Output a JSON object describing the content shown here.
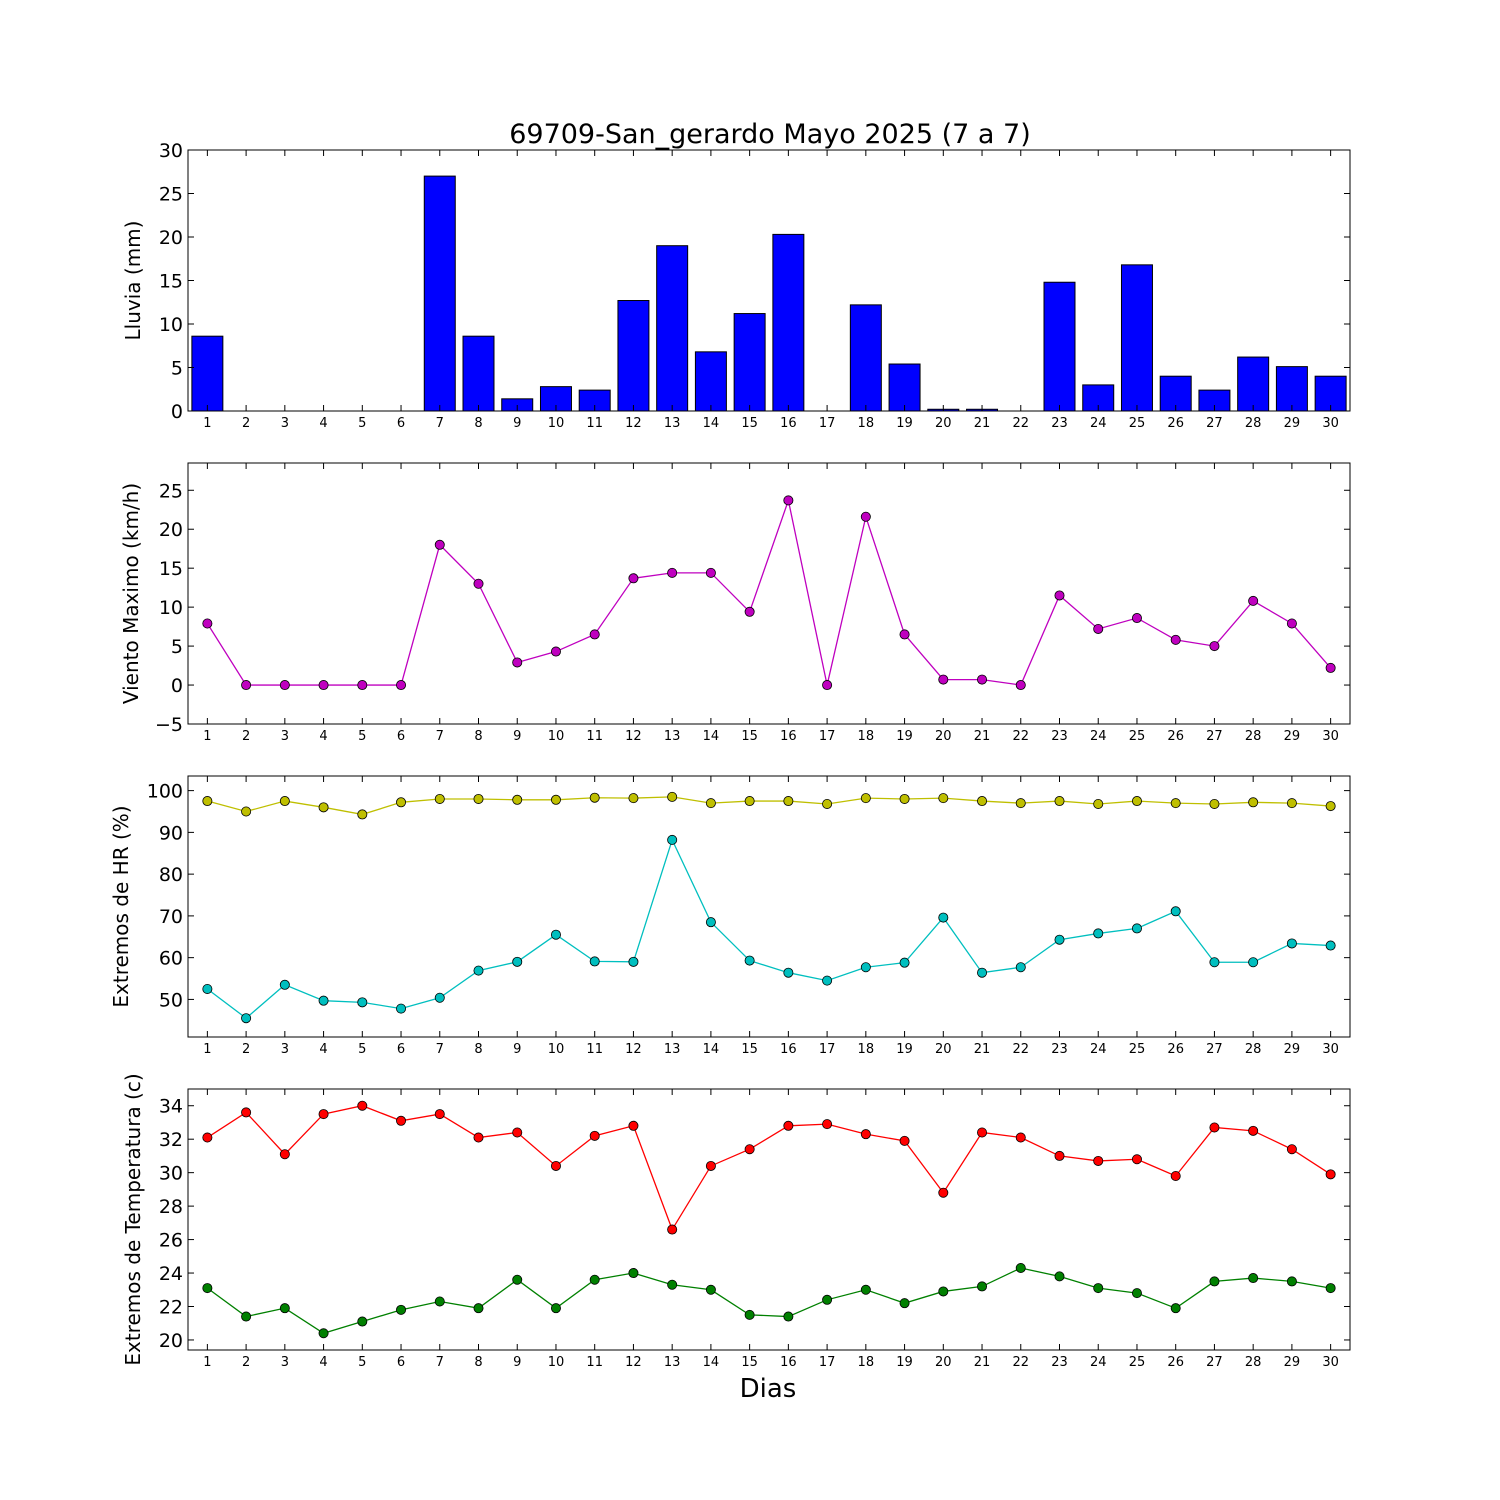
{
  "figure": {
    "title": "69709-San_gerardo Mayo 2025  (7 a 7)",
    "xlabel": "Dias"
  },
  "chart_data": [
    {
      "type": "bar",
      "ylabel": "Lluvia (mm)",
      "categories": [
        "1",
        "2",
        "3",
        "4",
        "5",
        "6",
        "7",
        "8",
        "9",
        "10",
        "11",
        "12",
        "13",
        "14",
        "15",
        "16",
        "17",
        "18",
        "19",
        "20",
        "21",
        "22",
        "23",
        "24",
        "25",
        "26",
        "27",
        "28",
        "29",
        "30"
      ],
      "ylim": [
        0,
        30
      ],
      "yticks": [
        "0",
        "5",
        "10",
        "15",
        "20",
        "25",
        "30"
      ],
      "grid": false,
      "series": [
        {
          "color": "#0000ff",
          "values": [
            8.6,
            0,
            0,
            0,
            0,
            0,
            27,
            8.6,
            1.4,
            2.8,
            2.4,
            12.7,
            19,
            6.8,
            11.2,
            20.3,
            0,
            12.2,
            5.4,
            0.2,
            0.2,
            0,
            14.8,
            3,
            16.8,
            4,
            2.4,
            6.2,
            5.1,
            4
          ]
        }
      ]
    },
    {
      "type": "line",
      "ylabel": "Viento Maximo (km/h)",
      "categories": [
        "1",
        "2",
        "3",
        "4",
        "5",
        "6",
        "7",
        "8",
        "9",
        "10",
        "11",
        "12",
        "13",
        "14",
        "15",
        "16",
        "17",
        "18",
        "19",
        "20",
        "21",
        "22",
        "23",
        "24",
        "25",
        "26",
        "27",
        "28",
        "29",
        "30"
      ],
      "ylim": [
        -5,
        28.5
      ],
      "yticks": [
        "−5",
        "0",
        "5",
        "10",
        "15",
        "20",
        "25"
      ],
      "grid": false,
      "series": [
        {
          "color": "#bf00bf",
          "values": [
            7.9,
            0,
            0,
            0,
            0,
            0,
            18,
            13,
            2.9,
            4.3,
            6.5,
            13.7,
            14.4,
            14.4,
            9.4,
            23.7,
            0,
            21.6,
            6.5,
            0.7,
            0.7,
            0,
            11.5,
            7.2,
            8.6,
            5.8,
            5,
            10.8,
            7.9,
            2.2
          ]
        }
      ]
    },
    {
      "type": "line",
      "ylabel": "Extremos de HR (%)",
      "categories": [
        "1",
        "2",
        "3",
        "4",
        "5",
        "6",
        "7",
        "8",
        "9",
        "10",
        "11",
        "12",
        "13",
        "14",
        "15",
        "16",
        "17",
        "18",
        "19",
        "20",
        "21",
        "22",
        "23",
        "24",
        "25",
        "26",
        "27",
        "28",
        "29",
        "30"
      ],
      "ylim": [
        41,
        103.5
      ],
      "yticks": [
        "50",
        "60",
        "70",
        "80",
        "90",
        "100"
      ],
      "grid": false,
      "series": [
        {
          "color": "#bfbf00",
          "values": [
            97.5,
            95,
            97.5,
            96,
            94.3,
            97.2,
            98,
            98,
            97.8,
            97.8,
            98.3,
            98.2,
            98.5,
            97,
            97.5,
            97.5,
            96.8,
            98.2,
            98,
            98.2,
            97.5,
            97,
            97.5,
            96.8,
            97.5,
            97,
            96.8,
            97.2,
            97,
            96.3
          ]
        },
        {
          "color": "#00bfbf",
          "values": [
            52.5,
            45.5,
            53.5,
            49.7,
            49.3,
            47.8,
            50.4,
            56.9,
            59,
            65.5,
            59.1,
            59,
            88.2,
            68.5,
            59.3,
            56.4,
            54.5,
            57.7,
            58.8,
            69.6,
            56.4,
            57.7,
            64.3,
            65.8,
            67,
            71.1,
            58.9,
            58.9,
            63.4,
            62.9
          ]
        }
      ]
    },
    {
      "type": "line",
      "ylabel": "Extremos de Temperatura (c)",
      "categories": [
        "1",
        "2",
        "3",
        "4",
        "5",
        "6",
        "7",
        "8",
        "9",
        "10",
        "11",
        "12",
        "13",
        "14",
        "15",
        "16",
        "17",
        "18",
        "19",
        "20",
        "21",
        "22",
        "23",
        "24",
        "25",
        "26",
        "27",
        "28",
        "29",
        "30"
      ],
      "ylim": [
        19.4,
        35
      ],
      "yticks": [
        "20",
        "22",
        "24",
        "26",
        "28",
        "30",
        "32",
        "34"
      ],
      "grid": false,
      "series": [
        {
          "color": "#ff0000",
          "values": [
            32.1,
            33.6,
            31.1,
            33.5,
            34,
            33.1,
            33.5,
            32.1,
            32.4,
            30.4,
            32.2,
            32.8,
            26.6,
            30.4,
            31.4,
            32.8,
            32.9,
            32.3,
            31.9,
            28.8,
            32.4,
            32.1,
            31,
            30.7,
            30.8,
            29.8,
            32.7,
            32.5,
            31.4,
            29.9
          ]
        },
        {
          "color": "#008000",
          "values": [
            23.1,
            21.4,
            21.9,
            20.4,
            21.1,
            21.8,
            22.3,
            21.9,
            23.6,
            21.9,
            23.6,
            24,
            23.3,
            23,
            21.5,
            21.4,
            22.4,
            23,
            22.2,
            22.9,
            23.2,
            24.3,
            23.8,
            23.1,
            22.8,
            21.9,
            23.5,
            23.7,
            23.5,
            23.1
          ]
        }
      ]
    }
  ]
}
